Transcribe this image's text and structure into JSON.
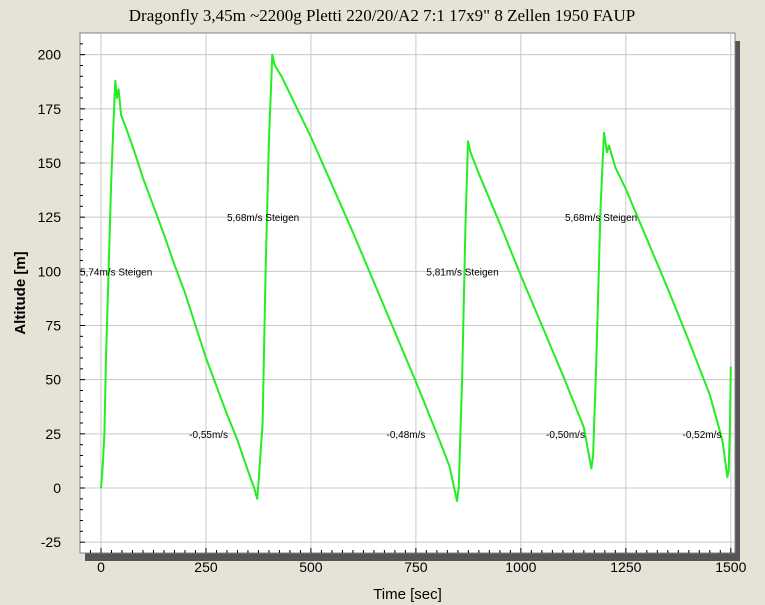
{
  "chart_data": {
    "type": "line",
    "title": "Dragonfly 3,45m  ~2200g  Pletti 220/20/A2 7:1  17x9\"  8 Zellen  1950 FAUP",
    "xlabel": "Time [sec]",
    "ylabel": "Altitude [m]",
    "xlim": [
      -50,
      1510
    ],
    "ylim": [
      -30,
      210
    ],
    "xticks": [
      0,
      250,
      500,
      750,
      1000,
      1250,
      1500
    ],
    "yticks": [
      -25,
      0,
      25,
      50,
      75,
      100,
      125,
      150,
      175,
      200
    ],
    "grid": true,
    "colors": {
      "line": "#22ee22",
      "plot_bg": "#ffffff",
      "grid": "#c8c8c8",
      "page_bg": "#e6e3d6"
    },
    "series": [
      {
        "values": [
          [
            0,
            0
          ],
          [
            4,
            10
          ],
          [
            8,
            25
          ],
          [
            12,
            60
          ],
          [
            18,
            100
          ],
          [
            24,
            140
          ],
          [
            30,
            170
          ],
          [
            34,
            188
          ],
          [
            38,
            180
          ],
          [
            42,
            184
          ],
          [
            48,
            172
          ],
          [
            60,
            166
          ],
          [
            80,
            155
          ],
          [
            100,
            143
          ],
          [
            125,
            130
          ],
          [
            150,
            117
          ],
          [
            175,
            103
          ],
          [
            200,
            90
          ],
          [
            225,
            75
          ],
          [
            250,
            60
          ],
          [
            275,
            47
          ],
          [
            300,
            34
          ],
          [
            325,
            22
          ],
          [
            350,
            8
          ],
          [
            365,
            0
          ],
          [
            372,
            -5
          ],
          [
            376,
            5
          ],
          [
            385,
            30
          ],
          [
            392,
            100
          ],
          [
            400,
            160
          ],
          [
            408,
            200
          ],
          [
            414,
            195
          ],
          [
            430,
            190
          ],
          [
            450,
            182
          ],
          [
            500,
            162
          ],
          [
            550,
            140
          ],
          [
            600,
            118
          ],
          [
            650,
            95
          ],
          [
            700,
            72
          ],
          [
            750,
            49
          ],
          [
            800,
            25
          ],
          [
            830,
            10
          ],
          [
            848,
            -6
          ],
          [
            852,
            0
          ],
          [
            860,
            50
          ],
          [
            868,
            120
          ],
          [
            874,
            160
          ],
          [
            880,
            155
          ],
          [
            900,
            145
          ],
          [
            950,
            122
          ],
          [
            1000,
            98
          ],
          [
            1050,
            75
          ],
          [
            1100,
            52
          ],
          [
            1150,
            28
          ],
          [
            1168,
            9
          ],
          [
            1172,
            15
          ],
          [
            1180,
            60
          ],
          [
            1190,
            130
          ],
          [
            1198,
            164
          ],
          [
            1205,
            155
          ],
          [
            1210,
            158
          ],
          [
            1225,
            148
          ],
          [
            1250,
            138
          ],
          [
            1300,
            115
          ],
          [
            1350,
            92
          ],
          [
            1400,
            68
          ],
          [
            1450,
            43
          ],
          [
            1480,
            22
          ],
          [
            1492,
            5
          ],
          [
            1495,
            8
          ],
          [
            1498,
            30
          ],
          [
            1500,
            56
          ]
        ]
      }
    ],
    "annotations": [
      {
        "text": "5,74m/s Steigen",
        "x": -50,
        "y": 100
      },
      {
        "text": "5,68m/s Steigen",
        "x": 300,
        "y": 125
      },
      {
        "text": "5,81m/s Steigen",
        "x": 775,
        "y": 100
      },
      {
        "text": "5,68m/s Steigen",
        "x": 1105,
        "y": 125
      },
      {
        "text": "-0,55m/s",
        "x": 210,
        "y": 25
      },
      {
        "text": "-0,48m/s",
        "x": 680,
        "y": 25
      },
      {
        "text": "-0,50m/s",
        "x": 1060,
        "y": 25
      },
      {
        "text": "-0,52m/s",
        "x": 1385,
        "y": 25
      }
    ]
  }
}
